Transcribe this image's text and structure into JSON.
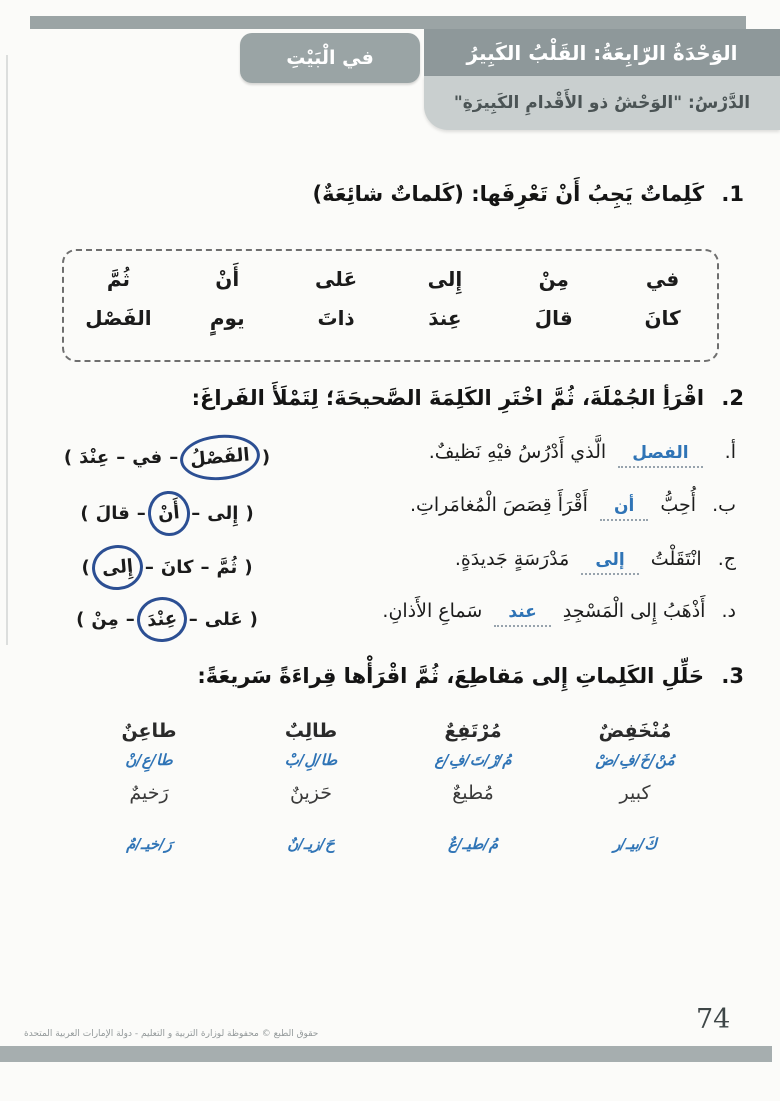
{
  "colors": {
    "answer_blue": "#2f74b6",
    "circle_blue": "#2c4f93",
    "bar_dark": "#8e989a",
    "bar_light": "#c9cfcf",
    "band_gray": "#a6aeaf"
  },
  "header": {
    "unit_title": "الوَحْدَةُ الرّابِعَةُ: القَلْبُ الكَبِيرُ",
    "location_tab": "في الْبَيْتِ",
    "lesson_title": "الدَّرْسُ: \"الوَحْشُ ذو الأَقْدامِ الكَبِيرَةِ\""
  },
  "section1": {
    "number": "1.",
    "title": "كَلِماتٌ يَجِبُ أَنْ تَعْرِفَها: (كَلماتٌ شائِعَةٌ)",
    "words_row1": [
      "في",
      "مِنْ",
      "إِلى",
      "عَلى",
      "أَنْ",
      "ثُمَّ"
    ],
    "words_row2": [
      "كانَ",
      "قالَ",
      "عِندَ",
      "ذاتَ",
      "يومٍ",
      "الفَصْل"
    ]
  },
  "section2": {
    "number": "2.",
    "title": "اقْرَأِ الجُمْلَةَ، ثُمَّ اخْتَرِ الكَلِمَةَ الصَّحيحَةَ؛ لِتَمْلَأَ الفَراغَ:",
    "paren_open": "(",
    "paren_close": ")",
    "dash": "–",
    "items": [
      {
        "letter": "أ.",
        "pre": "",
        "answer": "الفصل",
        "post": "الَّذي أَدْرُسُ فيْهِ نَظيفٌ.",
        "choices": [
          "الفَصْلُ",
          "في",
          "عِنْدَ"
        ],
        "circled": "الفَصْلُ"
      },
      {
        "letter": "ب.",
        "pre": "أُحِبُّ",
        "answer": "أن",
        "post": "أَقْرَأَ قِصَصَ الْمُغامَراتِ.",
        "choices": [
          "إِلى",
          "أَنْ",
          "قالَ"
        ],
        "circled": "أَنْ"
      },
      {
        "letter": "ج.",
        "pre": "انْتَقَلْتُ",
        "answer": "إلى",
        "post": "مَدْرَسَةٍ جَديدَةٍ.",
        "choices": [
          "ثُمَّ",
          "كانَ",
          "إِلى"
        ],
        "circled": "إِلى"
      },
      {
        "letter": "د.",
        "pre": "أَذْهَبُ إِلى الْمَسْجِدِ",
        "answer": "عند",
        "post": "سَماعِ الأَذانِ.",
        "choices": [
          "عَلى",
          "عِنْدَ",
          "مِنْ"
        ],
        "circled": "عِنْدَ"
      }
    ]
  },
  "section3": {
    "number": "3.",
    "title": "حَلِّلِ الكَلِماتِ إِلى مَقاطِعَ، ثُمَّ اقْرَأْها قِراءَةً سَريعَةً:",
    "columns": [
      {
        "word1": "مُنْخَفِضٌ",
        "syll1": "مُنْ/خَ/فِ/ضْ",
        "word2": "كبير",
        "syll2": "كَ/بيـ/ر"
      },
      {
        "word1": "مُرْتَفِعٌ",
        "syll1": "مُ/رْ/تَ/فِ/ع",
        "word2": "مُطيعٌ",
        "syll2": "مُ/طيـ/عٌ"
      },
      {
        "word1": "طالِبٌ",
        "syll1": "طا/لِ/بْ",
        "word2": "حَزينٌ",
        "syll2": "حَ/زيـ/نٌ"
      },
      {
        "word1": "طاعِنٌ",
        "syll1": "طا/عِ/نْ",
        "word2": "رَخيمٌ",
        "syll2": "رَ/خيـ/مٌ"
      }
    ]
  },
  "footer": {
    "copyright": "حقوق الطبع © محفوظة لوزارة التربية و التعليم - دولة الإمارات العربية المتحدة",
    "page_number": "74"
  }
}
